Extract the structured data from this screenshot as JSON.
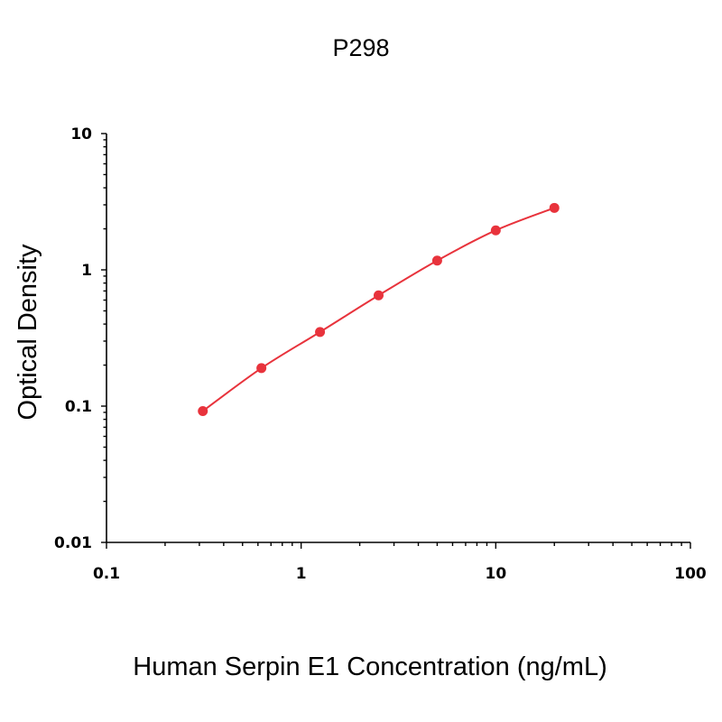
{
  "chart_data": {
    "type": "scatter",
    "title": "P298",
    "xlabel": "Human Serpin E1 Concentration (ng/mL)",
    "ylabel": "Optical Density",
    "x_scale": "log",
    "y_scale": "log",
    "xlim": [
      0.1,
      100
    ],
    "ylim": [
      0.01,
      10
    ],
    "x_ticks": [
      "0.1",
      "1",
      "10",
      "100"
    ],
    "y_ticks": [
      "0.01",
      "0.1",
      "1",
      "10"
    ],
    "grid": false,
    "series": [
      {
        "color": "#e8333c",
        "x": [
          0.3125,
          0.625,
          1.25,
          2.5,
          5,
          10,
          20
        ],
        "y": [
          0.092,
          0.19,
          0.35,
          0.65,
          1.17,
          1.95,
          2.85
        ]
      }
    ],
    "fit_curve": true
  }
}
